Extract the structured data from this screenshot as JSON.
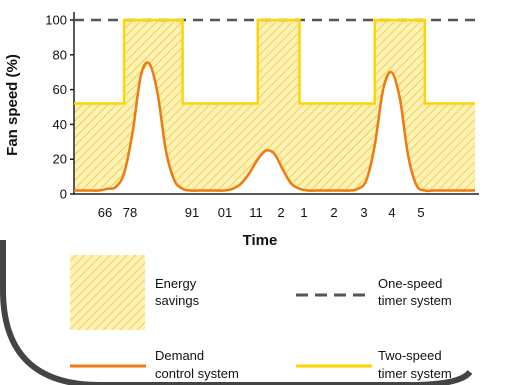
{
  "chart_data": {
    "type": "line",
    "title": "",
    "xlabel": "Time",
    "ylabel": "Fan speed (%)",
    "ylim": [
      0,
      100
    ],
    "y_ticks": [
      "0",
      "20",
      "40",
      "60",
      "80",
      "100"
    ],
    "x_ticks": [
      "66",
      "78",
      "91",
      "01",
      "11",
      "2",
      "1",
      "2",
      "3",
      "4",
      "5"
    ],
    "grid": false,
    "x_positions": [
      0,
      1,
      2,
      3,
      4,
      5,
      6,
      7,
      8,
      9,
      10,
      11,
      12,
      13,
      14,
      15,
      16,
      17,
      18,
      19,
      20,
      21,
      22,
      23,
      24,
      25,
      26,
      27,
      28,
      29,
      30,
      31,
      32,
      33,
      34,
      35,
      36,
      37,
      38,
      39,
      40,
      41,
      42,
      43,
      44,
      45,
      46,
      47,
      48
    ],
    "series": [
      {
        "name": "One-speed timer system",
        "style": "dashed",
        "color": "#555555",
        "values": [
          100,
          100,
          100,
          100,
          100,
          100,
          100,
          100,
          100,
          100,
          100,
          100,
          100,
          100,
          100,
          100,
          100,
          100,
          100,
          100,
          100,
          100,
          100,
          100,
          100,
          100,
          100,
          100,
          100,
          100,
          100,
          100,
          100,
          100,
          100,
          100,
          100,
          100,
          100,
          100,
          100,
          100,
          100,
          100,
          100,
          100,
          100,
          100,
          100
        ]
      },
      {
        "name": "Two-speed timer system",
        "style": "solid",
        "color": "#ffd400",
        "values": [
          52,
          52,
          52,
          52,
          52,
          52,
          100,
          100,
          100,
          100,
          100,
          100,
          100,
          52,
          52,
          52,
          52,
          52,
          52,
          52,
          52,
          52,
          100,
          100,
          100,
          100,
          100,
          52,
          52,
          52,
          52,
          52,
          52,
          52,
          52,
          52,
          100,
          100,
          100,
          100,
          100,
          100,
          52,
          52,
          52,
          52,
          52,
          52,
          52
        ]
      },
      {
        "name": "Demand control system",
        "style": "solid",
        "color": "#ee7a10",
        "values": [
          2,
          2,
          2,
          2,
          3,
          4,
          12,
          35,
          68,
          75,
          58,
          25,
          8,
          3,
          2,
          2,
          2,
          2,
          2,
          3,
          6,
          12,
          20,
          25,
          23,
          14,
          6,
          3,
          2,
          2,
          2,
          2,
          2,
          2,
          3,
          8,
          28,
          60,
          70,
          55,
          22,
          5,
          2,
          2,
          2,
          2,
          2,
          2,
          2
        ]
      }
    ],
    "annotations": {
      "shaded_area": "Energy savings"
    }
  },
  "legend": {
    "energy_savings_line1": "Energy",
    "energy_savings_line2": "savings",
    "one_speed_line1": "One-speed",
    "one_speed_line2": "timer system",
    "demand_line1": "Demand",
    "demand_line2": "control system",
    "two_speed_line1": "Two-speed",
    "two_speed_line2": "timer system"
  },
  "colors": {
    "hatch_fill": "#fdf1b8",
    "hatch_line": "#e6c200",
    "frame": "#444444"
  }
}
